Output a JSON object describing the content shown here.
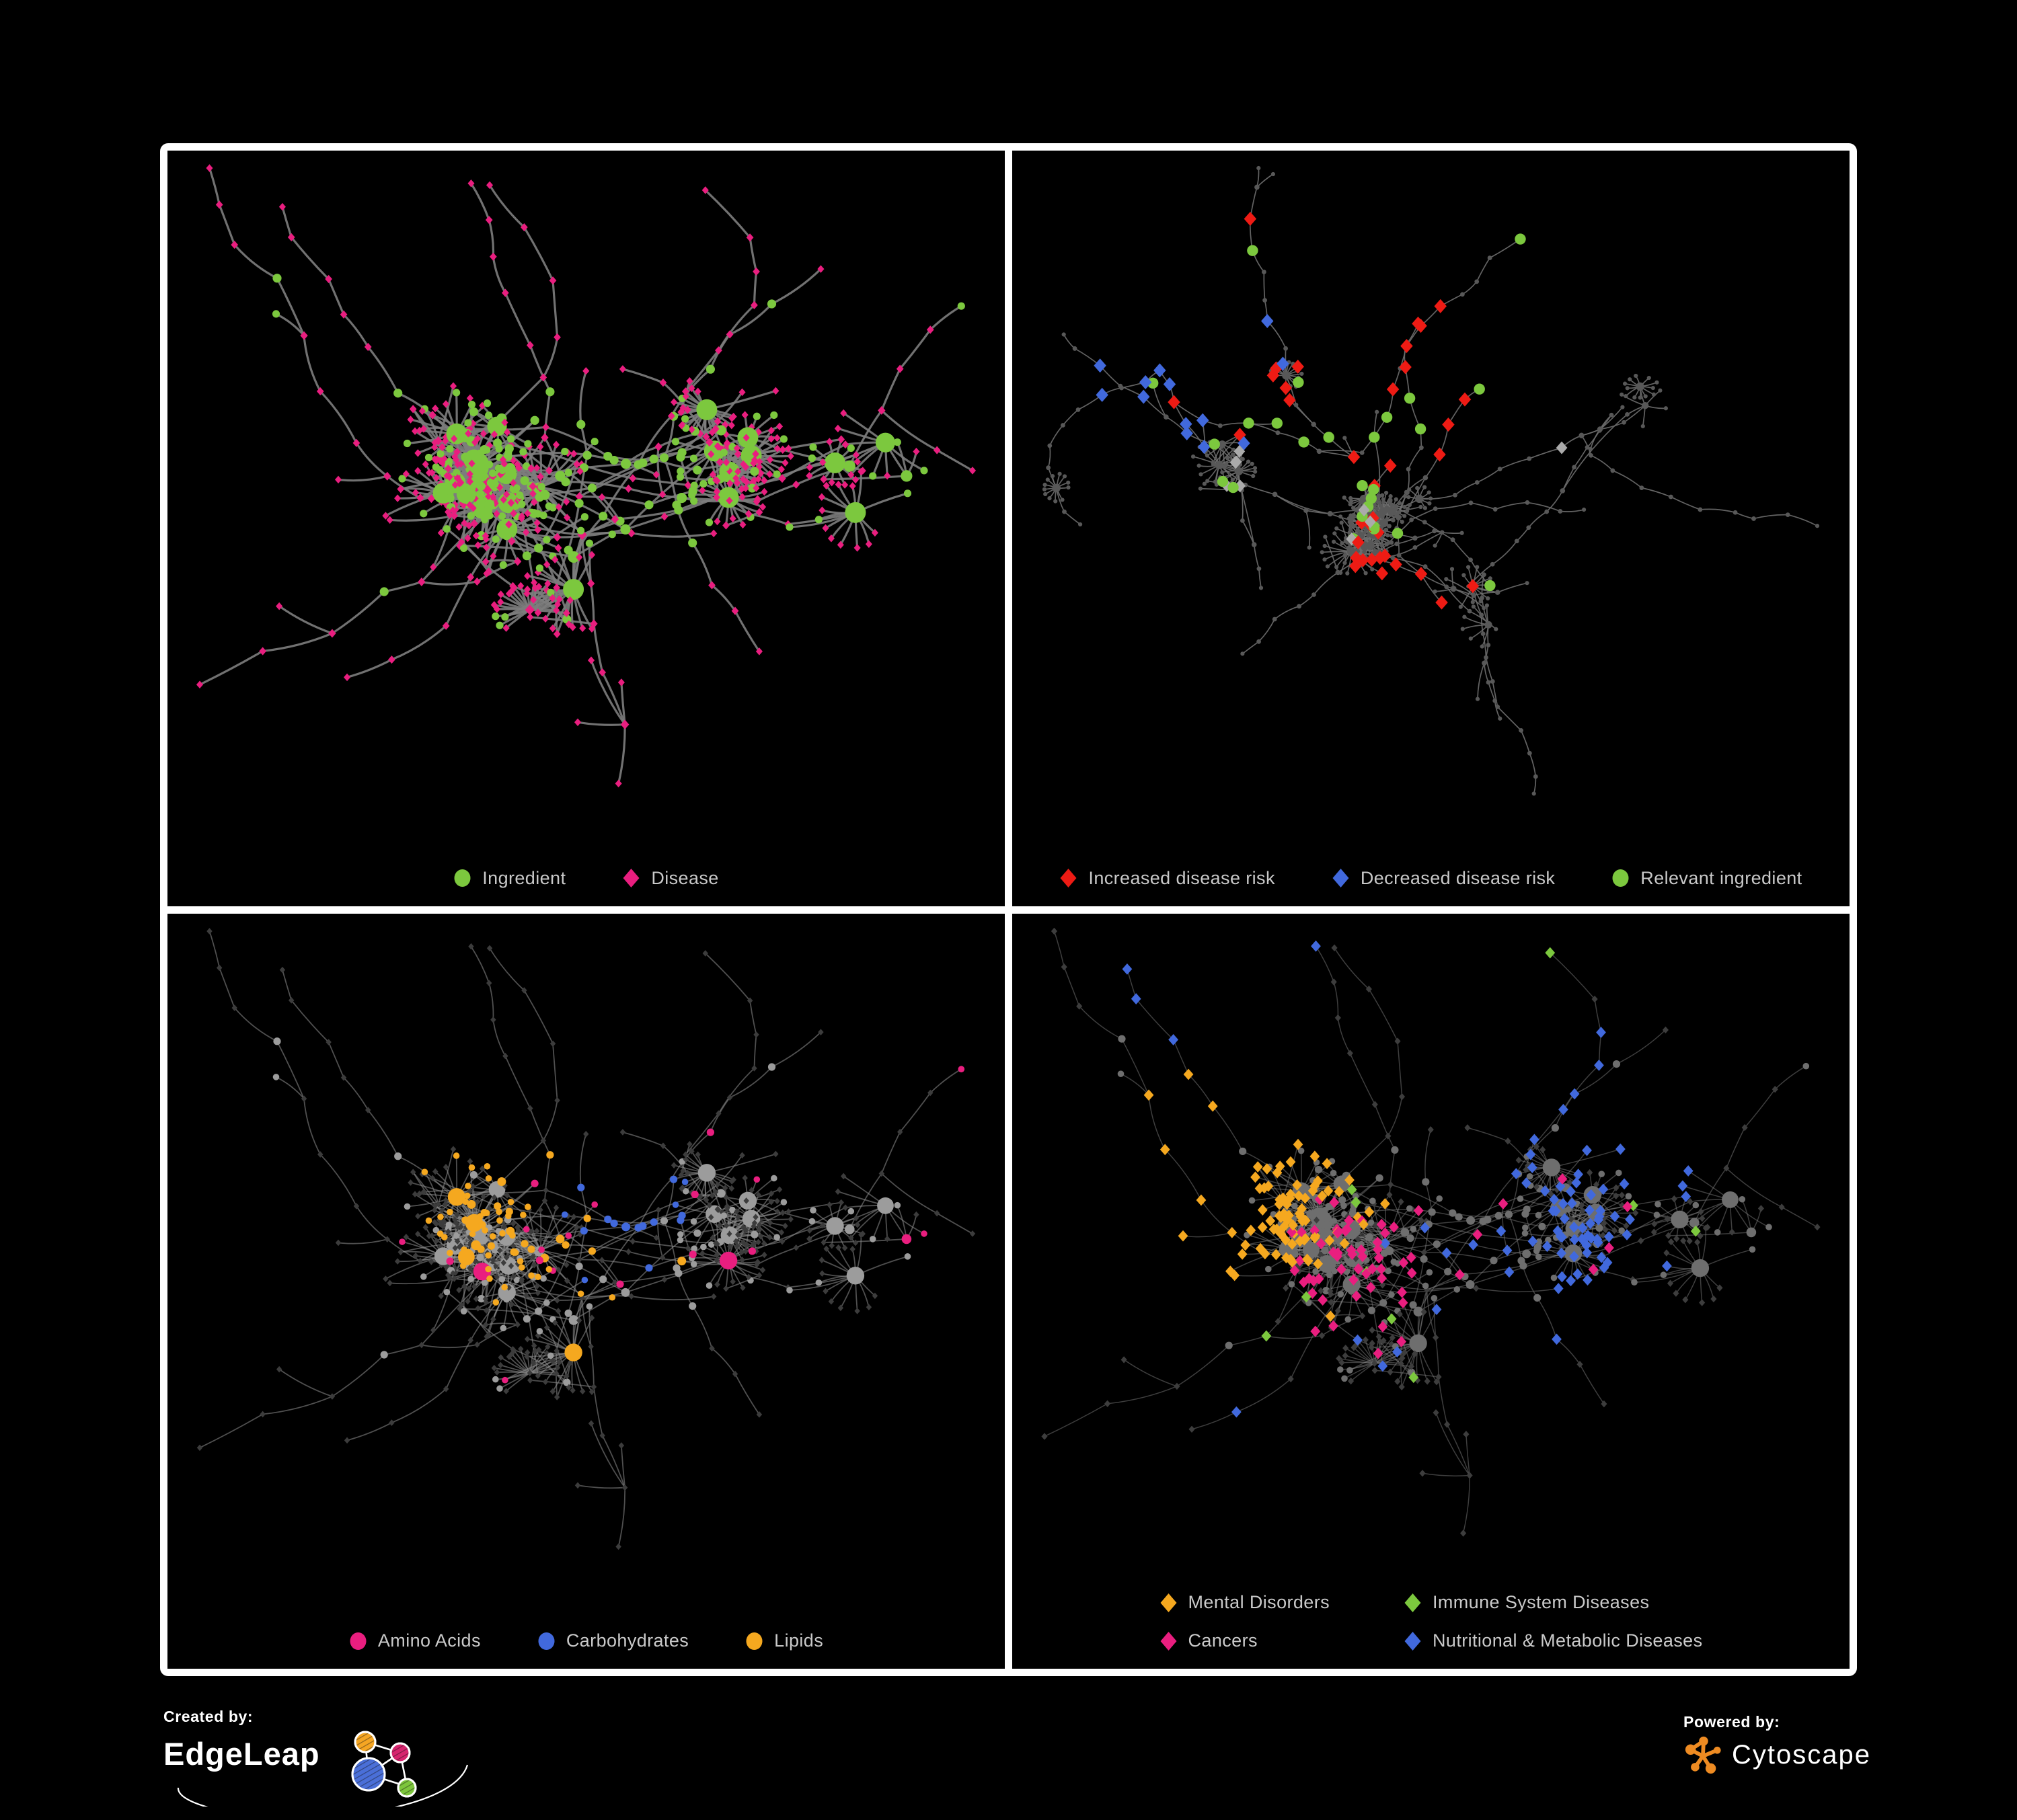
{
  "colors": {
    "background": "#000000",
    "frame": "#ffffff",
    "legend_text": "#C9C9C9",
    "green": "#7CC83E",
    "magenta": "#E91E7F",
    "red": "#EE1B14",
    "blue": "#4169DD",
    "orange": "#F5A81F",
    "silver": "#ABABAB",
    "edgeleap_orange": "#F5A623",
    "edgeleap_magenta": "#D6246E",
    "edgeleap_blue": "#4A6FD8",
    "edgeleap_green": "#7DC63C",
    "cytoscape_orange": "#EE8B22"
  },
  "footer": {
    "created_by": "Created by:",
    "brand": "EdgeLeap",
    "powered_by": "Powered by:",
    "engine": "Cytoscape"
  },
  "graphs": {
    "A": {
      "seed": 20240711,
      "nodes": 640,
      "dist": 42,
      "pChain": 0.16,
      "pFan": 0.22,
      "chainMax": 7,
      "fanMin": 6,
      "fanMax": 26,
      "cross": 45,
      "crossMax": 0.2,
      "shapes": true
    },
    "B": {
      "seed": 987653,
      "nodes": 520,
      "dist": 52,
      "pChain": 0.3,
      "pFan": 0.24,
      "chainMax": 9,
      "fanMin": 5,
      "fanMax": 18,
      "cross": 12,
      "crossMax": 0.15,
      "shapes": false
    }
  },
  "panels": [
    {
      "name": "ingredient-disease-network",
      "legend": {
        "layout": "row",
        "items": [
          {
            "label": "Ingredient",
            "shape": "circle",
            "color": "#7CC83E"
          },
          {
            "label": "Disease",
            "shape": "diamond",
            "color": "#E91E7F"
          }
        ]
      },
      "render": {
        "graph": "A",
        "assignSeed": 11,
        "edge": {
          "color": "#7D7D7D",
          "width": 3.2,
          "opacity": 0.9
        },
        "circle": {
          "color": "#7CC83E",
          "scale": 1.0
        },
        "diamond": {
          "color": "#E91E7F"
        },
        "rectH": 915,
        "categories": []
      }
    },
    {
      "name": "disease-risk-network",
      "legend": {
        "layout": "row",
        "items": [
          {
            "label": "Increased disease risk",
            "shape": "diamond",
            "color": "#EE1B14"
          },
          {
            "label": "Decreased disease risk",
            "shape": "diamond",
            "color": "#4169DD"
          },
          {
            "label": "Relevant ingredient",
            "shape": "circle",
            "color": "#7CC83E"
          }
        ]
      },
      "render": {
        "graph": "B",
        "assignSeed": 22,
        "edge": {
          "color": "#6E6E6E",
          "width": 1.7,
          "opacity": 0.9
        },
        "dot": {
          "color": "#585858"
        },
        "rectH": 930,
        "categories": [
          {
            "name": "increased-risk",
            "color": "#EE1B14",
            "shape": "diamond",
            "size": 10.5,
            "count": 36,
            "applies": "any",
            "foci": [
              [
                0.4,
                0.3,
                0.1
              ],
              [
                0.55,
                0.36,
                0.07
              ],
              [
                0.46,
                0.68,
                0.05
              ]
            ]
          },
          {
            "name": "decreased-risk",
            "color": "#4169DD",
            "shape": "diamond",
            "size": 10.5,
            "count": 13,
            "applies": "any",
            "foci": [
              [
                0.2,
                0.3,
                0.05
              ],
              [
                0.84,
                0.16,
                0.025
              ]
            ]
          },
          {
            "name": "gray-unclassified",
            "color": "#ABABAB",
            "shape": "diamond",
            "size": 9.5,
            "count": 9,
            "applies": "any",
            "foci": [
              [
                0.42,
                0.36,
                0.2
              ]
            ]
          },
          {
            "name": "relevant-ingredient",
            "color": "#7CC83E",
            "shape": "circle",
            "size": 8.2,
            "count": 26,
            "applies": "any",
            "foci": [
              [
                0.4,
                0.33,
                0.12
              ],
              [
                0.63,
                0.6,
                0.04
              ]
            ]
          }
        ]
      }
    },
    {
      "name": "nutrient-class-network",
      "legend": {
        "layout": "row",
        "items": [
          {
            "label": "Amino Acids",
            "shape": "circle",
            "color": "#E91E7F"
          },
          {
            "label": "Carbohydrates",
            "shape": "circle",
            "color": "#4169DD"
          },
          {
            "label": "Lipids",
            "shape": "circle",
            "color": "#F5A81F"
          }
        ]
      },
      "render": {
        "graph": "A",
        "assignSeed": 33,
        "edge": {
          "color": "#909090",
          "width": 1.8,
          "opacity": 0.55
        },
        "circle": {
          "color": "#9C9C9C",
          "scale": 0.85
        },
        "diamond": {
          "color": "#3C3C3C",
          "size": 4.8
        },
        "rectH": 915,
        "categories": [
          {
            "name": "lipids",
            "color": "#F5A81F",
            "shape": "circle",
            "count": 70,
            "applies": "circle",
            "foci": [
              [
                0.44,
                0.26,
                0.1
              ],
              [
                0.36,
                0.42,
                0.08
              ],
              [
                0.52,
                0.55,
                0.05
              ]
            ]
          },
          {
            "name": "amino-acids",
            "color": "#E91E7F",
            "shape": "circle",
            "count": 22,
            "applies": "circle",
            "uniform": 0.02,
            "foci": [
              [
                0.5,
                0.6,
                0.5
              ]
            ]
          },
          {
            "name": "carbohydrates",
            "color": "#4169DD",
            "shape": "circle",
            "count": 16,
            "applies": "circle",
            "foci": [
              [
                0.37,
                0.27,
                0.05
              ],
              [
                0.55,
                0.45,
                0.04
              ]
            ]
          }
        ]
      }
    },
    {
      "name": "disease-category-network",
      "legend": {
        "layout": "grid2",
        "items": [
          {
            "label": "Mental Disorders",
            "shape": "diamond",
            "color": "#F5A81F"
          },
          {
            "label": "Immune System Diseases",
            "shape": "diamond",
            "color": "#7CC83E"
          },
          {
            "label": "Cancers",
            "shape": "diamond",
            "color": "#E91E7F"
          },
          {
            "label": "Nutritional & Metabolic Diseases",
            "shape": "diamond",
            "color": "#4169DD"
          }
        ]
      },
      "render": {
        "graph": "A",
        "assignSeed": 44,
        "edge": {
          "color": "#8A8A8A",
          "width": 1.5,
          "opacity": 0.45
        },
        "circle": {
          "color": "#6E6E6E",
          "scale": 0.85
        },
        "diamond": {
          "color": "#3D3D3D",
          "size": 5.2
        },
        "rectH": 895,
        "categories": [
          {
            "name": "mental-disorders",
            "color": "#F5A81F",
            "shape": "diamond",
            "size": 8.4,
            "count": 85,
            "applies": "diamond",
            "foci": [
              [
                0.16,
                0.42,
                0.09
              ],
              [
                0.28,
                0.35,
                0.05
              ]
            ]
          },
          {
            "name": "cancers",
            "color": "#E91E7F",
            "shape": "diamond",
            "size": 8.4,
            "count": 60,
            "applies": "diamond",
            "foci": [
              [
                0.47,
                0.52,
                0.09
              ],
              [
                0.85,
                0.22,
                0.04
              ]
            ]
          },
          {
            "name": "nutritional-metabolic",
            "color": "#4169DD",
            "shape": "diamond",
            "size": 8.4,
            "count": 80,
            "applies": "diamond",
            "uniform": 0.01,
            "foci": [
              [
                0.63,
                0.57,
                0.06
              ],
              [
                0.76,
                0.28,
                0.08
              ],
              [
                0.33,
                0.78,
                0.05
              ],
              [
                0.22,
                0.1,
                0.07
              ]
            ]
          },
          {
            "name": "immune-system",
            "color": "#7CC83E",
            "shape": "diamond",
            "size": 8.4,
            "count": 10,
            "applies": "diamond",
            "uniform": 0.05,
            "foci": [
              [
                0.5,
                0.45,
                0.3
              ]
            ]
          }
        ]
      }
    }
  ]
}
